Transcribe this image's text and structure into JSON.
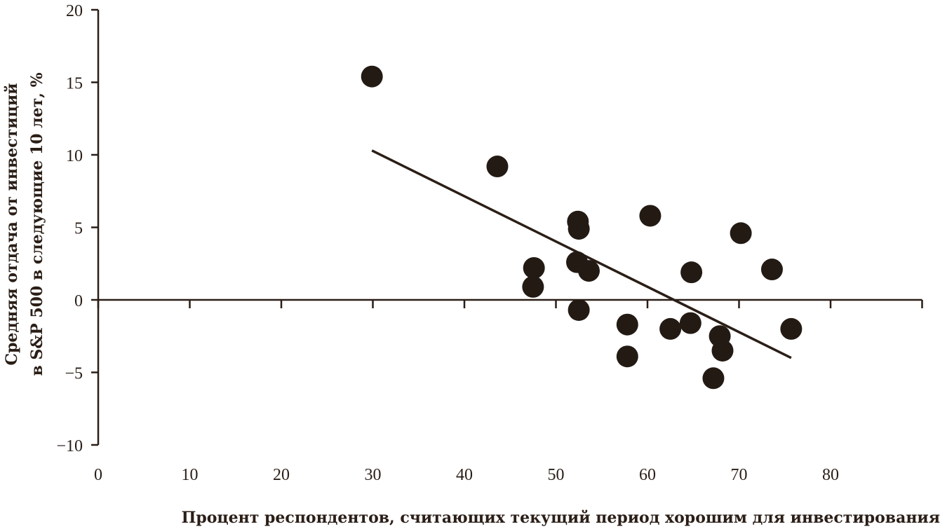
{
  "chart_data": {
    "type": "scatter",
    "title": "",
    "xlabel": "Процент респондентов, считающих текущий период хорошим для инвестирования",
    "ylabel_lines": [
      "Средняя отдача от инвестиций",
      "в S&P 500 в следующие 10 лет, %"
    ],
    "xlim": [
      0,
      90
    ],
    "ylim": [
      -10,
      20
    ],
    "x_ticks": [
      0,
      10,
      20,
      30,
      40,
      50,
      60,
      70,
      80
    ],
    "x_ticks_unlabeled": [
      90
    ],
    "y_ticks": [
      20,
      15,
      10,
      5,
      0,
      -5,
      -10
    ],
    "y_tick_labels": [
      "20",
      "15",
      "10",
      "5",
      "0",
      "−5",
      "−10"
    ],
    "grid": false,
    "legend": "none",
    "colors": {
      "marker": "#231a14",
      "axis": "#2a1e17"
    },
    "points": [
      {
        "x": 29.9,
        "y": 15.4
      },
      {
        "x": 43.6,
        "y": 9.2
      },
      {
        "x": 47.6,
        "y": 2.2
      },
      {
        "x": 47.5,
        "y": 0.9
      },
      {
        "x": 52.4,
        "y": 5.4
      },
      {
        "x": 52.5,
        "y": 4.9
      },
      {
        "x": 52.3,
        "y": 2.6
      },
      {
        "x": 53.6,
        "y": 2.0
      },
      {
        "x": 52.5,
        "y": -0.7
      },
      {
        "x": 57.8,
        "y": -1.7
      },
      {
        "x": 57.8,
        "y": -3.9
      },
      {
        "x": 60.3,
        "y": 5.8
      },
      {
        "x": 62.5,
        "y": -2.0
      },
      {
        "x": 64.8,
        "y": 1.9
      },
      {
        "x": 64.7,
        "y": -1.6
      },
      {
        "x": 67.2,
        "y": -5.4
      },
      {
        "x": 67.9,
        "y": -2.5
      },
      {
        "x": 68.2,
        "y": -3.5
      },
      {
        "x": 70.2,
        "y": 4.6
      },
      {
        "x": 73.6,
        "y": 2.1
      },
      {
        "x": 75.7,
        "y": -2.0
      }
    ],
    "trendline": {
      "x": [
        29.9,
        75.7
      ],
      "y": [
        10.3,
        -4.0
      ]
    }
  }
}
